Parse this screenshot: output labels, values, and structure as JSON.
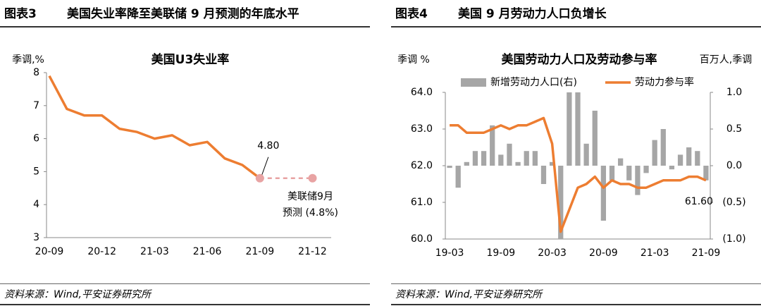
{
  "chart_data": [
    {
      "type": "line",
      "figure": "图表3",
      "caption": "美国失业率降至美联储 9 月预测的年底水平",
      "title": "美国U3失业率",
      "y_label": "季调,%",
      "source": "资料来源：Wind,平安证券研究所",
      "categories": [
        "20-09",
        null,
        null,
        "20-12",
        null,
        null,
        "21-03",
        null,
        null,
        "21-06",
        null,
        null,
        "21-09",
        null,
        null,
        "21-12"
      ],
      "ylim": [
        3,
        8
      ],
      "yticks": [
        3,
        4,
        5,
        6,
        7,
        8
      ],
      "series": [
        {
          "color": "#ed7d31",
          "values": [
            7.9,
            6.9,
            6.7,
            6.7,
            6.3,
            6.2,
            6.0,
            6.1,
            5.8,
            5.9,
            5.4,
            5.2,
            4.8,
            null,
            null,
            null
          ],
          "value_labels": [
            null,
            null,
            null,
            null,
            null,
            null,
            null,
            null,
            null,
            null,
            null,
            null,
            "4.80",
            null,
            null,
            null
          ]
        },
        {
          "color": "#e8a3a3",
          "dashed": true,
          "annotation": [
            "美联储9月",
            "预测 (4.8%)"
          ],
          "annotation_color": "#d98484",
          "values": [
            null,
            null,
            null,
            null,
            null,
            null,
            null,
            null,
            null,
            null,
            null,
            null,
            4.8,
            4.8,
            4.8,
            4.8
          ]
        }
      ]
    },
    {
      "type": "combo",
      "figure": "图表4",
      "caption": "美国 9 月劳动力人口负增长",
      "title": "美国劳动力人口及劳动参与率",
      "y_label": "季调 %",
      "y2_label": "百万人,季调",
      "source": "资料来源：Wind,平安证券研究所",
      "categories": [
        "19-03",
        null,
        null,
        null,
        null,
        null,
        "19-09",
        null,
        null,
        null,
        null,
        null,
        "20-03",
        null,
        null,
        null,
        null,
        null,
        "20-09",
        null,
        null,
        null,
        null,
        null,
        "21-03",
        null,
        null,
        null,
        null,
        null,
        "21-09"
      ],
      "ylim": [
        60,
        64
      ],
      "yticks": [
        {
          "value": 60,
          "label": "60.0"
        },
        {
          "value": 61,
          "label": "61.0"
        },
        {
          "value": 62,
          "label": "62.0"
        },
        {
          "value": 63,
          "label": "63.0"
        },
        {
          "value": 64,
          "label": "64.0"
        }
      ],
      "y2lim": [
        -1,
        1
      ],
      "y2ticks": [
        {
          "value": 1,
          "label": "1.0"
        },
        {
          "value": 0.5,
          "label": "0.5"
        },
        {
          "value": 0,
          "label": "0.0"
        },
        {
          "value": -0.5,
          "label": "(0.5)"
        },
        {
          "value": -1,
          "label": "(1.0)"
        }
      ],
      "y2_negative_color": "#c00000",
      "series": [
        {
          "name": "新增劳动力人口(右)",
          "type": "bar",
          "axis": "y2",
          "color": "#a6a6a6",
          "values": [
            -0.03,
            -0.3,
            0.05,
            0.2,
            0.2,
            0.55,
            0.15,
            0.3,
            0.05,
            0.2,
            0.2,
            -0.25,
            0.05,
            -1.0,
            1.0,
            1.0,
            0.3,
            0.75,
            -0.75,
            -0.2,
            0.1,
            -0.2,
            -0.4,
            -0.1,
            0.35,
            0.5,
            -0.05,
            0.15,
            0.25,
            0.2,
            -0.2
          ]
        },
        {
          "name": "劳动力参与率",
          "type": "line",
          "color": "#ed7d31",
          "values": [
            63.1,
            63.1,
            62.9,
            62.9,
            62.9,
            63.0,
            63.1,
            63.0,
            63.1,
            63.1,
            63.2,
            63.3,
            62.6,
            60.2,
            60.8,
            61.4,
            61.5,
            61.7,
            61.4,
            61.6,
            61.5,
            61.5,
            61.4,
            61.4,
            61.5,
            61.6,
            61.6,
            61.6,
            61.7,
            61.7,
            61.6
          ],
          "value_labels": [
            null,
            null,
            null,
            null,
            null,
            null,
            null,
            null,
            null,
            null,
            null,
            null,
            null,
            null,
            null,
            null,
            null,
            null,
            null,
            null,
            null,
            null,
            null,
            null,
            null,
            null,
            null,
            null,
            null,
            null,
            "61.60"
          ]
        }
      ]
    }
  ]
}
